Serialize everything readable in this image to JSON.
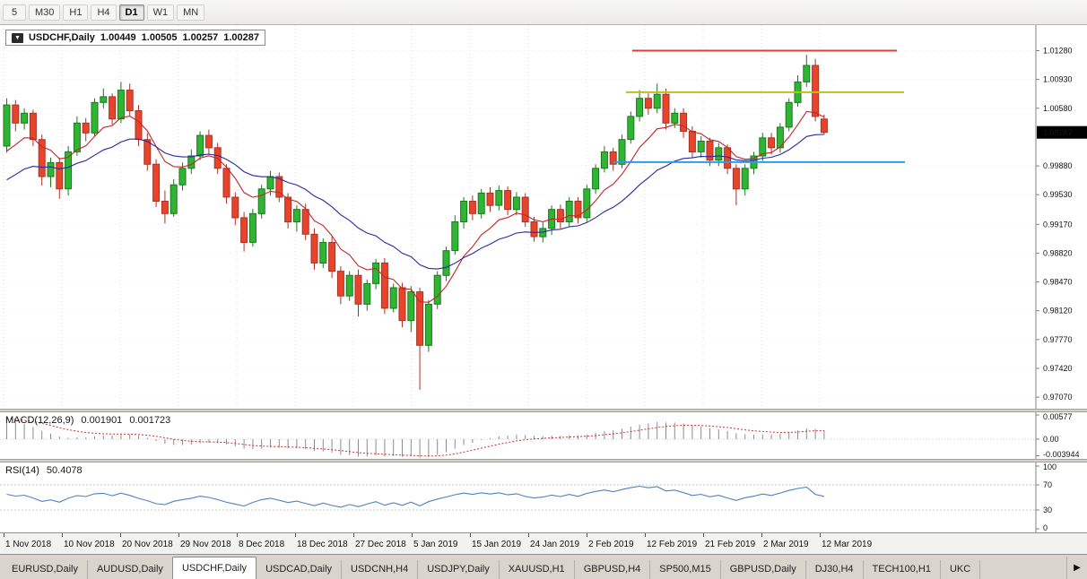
{
  "toolbar": {
    "buttons": [
      {
        "label": "5",
        "active": false
      },
      {
        "label": "M30",
        "active": false
      },
      {
        "label": "H1",
        "active": false
      },
      {
        "label": "H4",
        "active": false
      },
      {
        "label": "D1",
        "active": true
      },
      {
        "label": "W1",
        "active": false
      },
      {
        "label": "MN",
        "active": false
      }
    ]
  },
  "chart": {
    "symbol_label": "USDCHF,Daily",
    "dropdown_icon": "▼",
    "ohlc": {
      "open": "1.00449",
      "high": "1.00505",
      "low": "1.00257",
      "close": "1.00287"
    }
  },
  "chart_data": {
    "type": "candlestick",
    "symbol": "USDCHF",
    "timeframe": "Daily",
    "current_price": 1.00287,
    "y_max": 1.0159,
    "y_min": 0.9693,
    "y_ticks": [
      1.0128,
      1.0093,
      1.0058,
      0.9988,
      0.9953,
      0.9917,
      0.9882,
      0.9847,
      0.9812,
      0.9777,
      0.9742,
      0.9707
    ],
    "x_labels": [
      "1 Nov 2018",
      "10 Nov 2018",
      "20 Nov 2018",
      "29 Nov 2018",
      "8 Dec 2018",
      "18 Dec 2018",
      "27 Dec 2018",
      "5 Jan 2019",
      "15 Jan 2019",
      "24 Jan 2019",
      "2 Feb 2019",
      "12 Feb 2019",
      "21 Feb 2019",
      "2 Mar 2019",
      "12 Mar 2019"
    ],
    "colors": {
      "up": "#30B434",
      "up_stroke": "#177A1B",
      "down": "#E8442C",
      "down_stroke": "#A93226"
    },
    "candles": [
      [
        1.0012,
        1.007,
        1.0004,
        1.0062
      ],
      [
        1.0062,
        1.0068,
        1.003,
        1.004
      ],
      [
        1.004,
        1.0058,
        1.0032,
        1.0052
      ],
      [
        1.0052,
        1.0056,
        1.0012,
        1.002
      ],
      [
        1.002,
        1.0026,
        0.9964,
        0.9975
      ],
      [
        0.9975,
        0.9998,
        0.9962,
        0.9992
      ],
      [
        0.9992,
        0.9998,
        0.9948,
        0.996
      ],
      [
        0.996,
        1.0012,
        0.9952,
        1.0005
      ],
      [
        1.0005,
        1.0048,
        1.0,
        1.004
      ],
      [
        1.004,
        1.0046,
        1.0018,
        1.0028
      ],
      [
        1.0028,
        1.007,
        1.0024,
        1.0065
      ],
      [
        1.0065,
        1.0082,
        1.0058,
        1.0072
      ],
      [
        1.0072,
        1.0076,
        1.0038,
        1.0045
      ],
      [
        1.0045,
        1.009,
        1.004,
        1.008
      ],
      [
        1.008,
        1.0088,
        1.0048,
        1.0055
      ],
      [
        1.0055,
        1.0062,
        1.0012,
        1.002
      ],
      [
        1.002,
        1.0028,
        0.9982,
        0.999
      ],
      [
        0.999,
        0.9996,
        0.9938,
        0.9945
      ],
      [
        0.9945,
        0.9958,
        0.9918,
        0.993
      ],
      [
        0.993,
        0.9972,
        0.9926,
        0.9965
      ],
      [
        0.9965,
        0.9992,
        0.9958,
        0.9985
      ],
      [
        0.9985,
        1.0008,
        0.9978,
        1.0
      ],
      [
        1.0,
        1.003,
        0.9995,
        1.0025
      ],
      [
        1.0025,
        1.0032,
        1.0002,
        1.001
      ],
      [
        1.001,
        1.0016,
        0.9978,
        0.9985
      ],
      [
        0.9985,
        0.999,
        0.9942,
        0.995
      ],
      [
        0.995,
        0.9956,
        0.9916,
        0.9925
      ],
      [
        0.9925,
        0.9932,
        0.9884,
        0.9895
      ],
      [
        0.9895,
        0.9936,
        0.989,
        0.993
      ],
      [
        0.993,
        0.9965,
        0.9924,
        0.996
      ],
      [
        0.996,
        0.9982,
        0.9952,
        0.9975
      ],
      [
        0.9975,
        0.998,
        0.9944,
        0.995
      ],
      [
        0.995,
        0.9955,
        0.9912,
        0.992
      ],
      [
        0.992,
        0.994,
        0.9908,
        0.9935
      ],
      [
        0.9935,
        0.9942,
        0.9898,
        0.9905
      ],
      [
        0.9905,
        0.9912,
        0.9862,
        0.987
      ],
      [
        0.987,
        0.99,
        0.9864,
        0.9895
      ],
      [
        0.9895,
        0.9902,
        0.9852,
        0.986
      ],
      [
        0.986,
        0.9866,
        0.982,
        0.983
      ],
      [
        0.983,
        0.986,
        0.9824,
        0.9855
      ],
      [
        0.9855,
        0.9862,
        0.9805,
        0.982
      ],
      [
        0.982,
        0.985,
        0.9812,
        0.9845
      ],
      [
        0.9845,
        0.9875,
        0.9838,
        0.987
      ],
      [
        0.987,
        0.9876,
        0.9808,
        0.9815
      ],
      [
        0.9815,
        0.9845,
        0.981,
        0.984
      ],
      [
        0.984,
        0.9846,
        0.9792,
        0.98
      ],
      [
        0.98,
        0.9842,
        0.9786,
        0.9835
      ],
      [
        0.9835,
        0.984,
        0.9716,
        0.977
      ],
      [
        0.977,
        0.9825,
        0.9762,
        0.982
      ],
      [
        0.982,
        0.986,
        0.9814,
        0.9855
      ],
      [
        0.9855,
        0.989,
        0.9848,
        0.9885
      ],
      [
        0.9885,
        0.9928,
        0.988,
        0.992
      ],
      [
        0.992,
        0.995,
        0.9912,
        0.9945
      ],
      [
        0.9945,
        0.9952,
        0.9922,
        0.993
      ],
      [
        0.993,
        0.996,
        0.9924,
        0.9955
      ],
      [
        0.9955,
        0.9962,
        0.9932,
        0.994
      ],
      [
        0.994,
        0.9964,
        0.9934,
        0.9958
      ],
      [
        0.9958,
        0.9963,
        0.9928,
        0.9935
      ],
      [
        0.9935,
        0.9956,
        0.9928,
        0.995
      ],
      [
        0.995,
        0.9955,
        0.9914,
        0.992
      ],
      [
        0.992,
        0.9926,
        0.9896,
        0.9902
      ],
      [
        0.9902,
        0.992,
        0.9895,
        0.9912
      ],
      [
        0.9912,
        0.994,
        0.9904,
        0.9935
      ],
      [
        0.9935,
        0.9941,
        0.9912,
        0.992
      ],
      [
        0.992,
        0.995,
        0.9914,
        0.9945
      ],
      [
        0.9945,
        0.995,
        0.9918,
        0.9925
      ],
      [
        0.9925,
        0.9965,
        0.992,
        0.996
      ],
      [
        0.996,
        0.999,
        0.9954,
        0.9985
      ],
      [
        0.9985,
        1.0012,
        0.998,
        1.0005
      ],
      [
        1.0005,
        1.001,
        0.9982,
        0.999
      ],
      [
        0.999,
        1.0026,
        0.9985,
        1.002
      ],
      [
        1.002,
        1.0054,
        1.0015,
        1.0048
      ],
      [
        1.0048,
        1.008,
        1.0042,
        1.007
      ],
      [
        1.007,
        1.0076,
        1.005,
        1.0058
      ],
      [
        1.0058,
        1.0088,
        1.0052,
        1.0075
      ],
      [
        1.0075,
        1.0082,
        1.0032,
        1.004
      ],
      [
        1.004,
        1.0058,
        1.0034,
        1.0052
      ],
      [
        1.0052,
        1.0058,
        1.0022,
        1.003
      ],
      [
        1.003,
        1.0036,
        0.9998,
        1.0005
      ],
      [
        1.0005,
        1.0024,
        0.9998,
        1.0018
      ],
      [
        1.0018,
        1.0022,
        0.9988,
        0.9995
      ],
      [
        0.9995,
        1.0016,
        0.9988,
        1.001
      ],
      [
        1.001,
        1.0014,
        0.9978,
        0.9985
      ],
      [
        0.9985,
        0.999,
        0.994,
        0.996
      ],
      [
        0.996,
        0.999,
        0.9952,
        0.9985
      ],
      [
        0.9985,
        1.0005,
        0.9978,
        1.0
      ],
      [
        1.0,
        1.0028,
        0.9994,
        1.0022
      ],
      [
        1.0022,
        1.0028,
        1.0002,
        1.001
      ],
      [
        1.001,
        1.004,
        1.0004,
        1.0035
      ],
      [
        1.0035,
        1.007,
        1.003,
        1.0065
      ],
      [
        1.0065,
        1.0098,
        1.006,
        1.009
      ],
      [
        1.009,
        1.0123,
        1.0084,
        1.011
      ],
      [
        1.011,
        1.0118,
        1.0042,
        1.0048
      ],
      [
        1.00449,
        1.00505,
        1.00257,
        1.00287
      ]
    ],
    "overlays": {
      "ma_fast": {
        "type": "ema",
        "period": 8,
        "seed": 0.999,
        "color": "#C22626"
      },
      "ma_slow": {
        "type": "ema",
        "period": 21,
        "seed": 0.9962,
        "color": "#2A2A9E"
      },
      "hlines": [
        {
          "name": "horizontal-line-red-resistance",
          "price": 1.0128,
          "x1": 0.61,
          "x2": 0.866,
          "color": "#E23B3B",
          "width": 2
        },
        {
          "name": "horizontal-line-yellow-resistance",
          "price": 1.00775,
          "x1": 0.604,
          "x2": 0.873,
          "color": "#BCBE25",
          "width": 2
        },
        {
          "name": "horizontal-line-blue-support",
          "price": 0.99925,
          "x1": 0.592,
          "x2": 0.874,
          "color": "#2E9BE6",
          "width": 2
        }
      ]
    },
    "indicators": {
      "macd": {
        "label": "MACD(12,26,9)",
        "value_main": "0.001901",
        "value_signal": "0.001723",
        "params": {
          "fast": 12,
          "slow": 26,
          "signal": 9
        },
        "seed_fast_offset": 0.0028,
        "seed_slow_offset": -0.0027,
        "axis": {
          "min": -0.0047,
          "max": 0.0064,
          "ticks": [
            {
              "v": 0.00577,
              "label": "0.00577"
            },
            {
              "v": 0,
              "label": "0.00"
            },
            {
              "v": -0.003944,
              "label": "-0.003944"
            }
          ]
        },
        "histogram_color": "#8c8c8c",
        "signal_color": "#cc3333"
      },
      "rsi": {
        "label": "RSI(14)",
        "value": "50.4078",
        "params": {
          "period": 14
        },
        "levels": [
          70,
          30
        ],
        "axis": {
          "min": 0,
          "max": 100,
          "ticks": [
            {
              "v": 100,
              "label": "100"
            },
            {
              "v": 70,
              "label": "70"
            },
            {
              "v": 30,
              "label": "30"
            },
            {
              "v": 0,
              "label": "0"
            }
          ]
        },
        "color": "#4f81bd"
      }
    }
  },
  "tabbar": {
    "scroll_right_icon": "▶",
    "tabs": [
      {
        "label": "EURUSD,Daily",
        "active": false
      },
      {
        "label": "AUDUSD,Daily",
        "active": false
      },
      {
        "label": "USDCHF,Daily",
        "active": true
      },
      {
        "label": "USDCAD,Daily",
        "active": false
      },
      {
        "label": "USDCNH,H4",
        "active": false
      },
      {
        "label": "USDJPY,Daily",
        "active": false
      },
      {
        "label": "XAUUSD,H1",
        "active": false
      },
      {
        "label": "GBPUSD,H4",
        "active": false
      },
      {
        "label": "SP500,M15",
        "active": false
      },
      {
        "label": "GBPUSD,Daily",
        "active": false
      },
      {
        "label": "DJ30,H4",
        "active": false
      },
      {
        "label": "TECH100,H1",
        "active": false
      },
      {
        "label": "UKC",
        "active": false
      }
    ]
  }
}
